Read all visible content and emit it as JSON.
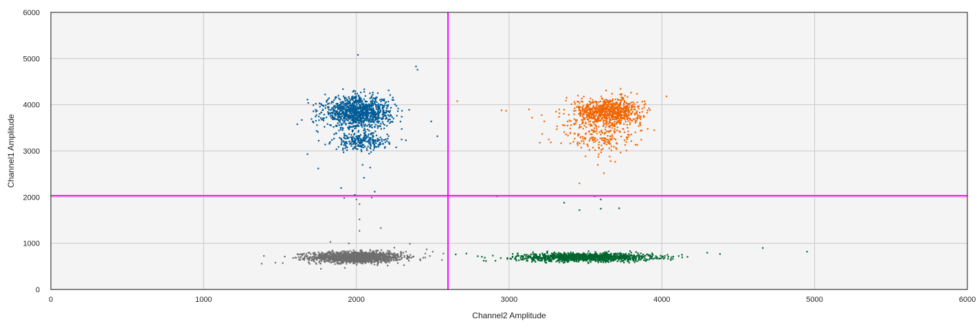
{
  "chart_data": {
    "type": "scatter",
    "xlabel": "Channel2 Amplitude",
    "ylabel": "Channel1 Amplitude",
    "xlim": [
      0,
      6000
    ],
    "ylim": [
      0,
      6000
    ],
    "x_ticks": [
      "0",
      "1000",
      "2000",
      "3000",
      "4000",
      "5000",
      "6000"
    ],
    "y_ticks": [
      "0",
      "1000",
      "2000",
      "3000",
      "4000",
      "5000",
      "6000"
    ],
    "grid": true,
    "background_color": "#f4f4f4",
    "threshold_color": "#ff00ff",
    "thresholds": {
      "x": 2600,
      "y": 2030
    },
    "clusters": [
      {
        "quadrant": "lower-left",
        "color": "#6e6e6e",
        "center": [
          2000,
          700
        ],
        "spread": [
          150,
          60
        ],
        "count": 1500
      },
      {
        "quadrant": "lower-right",
        "color": "#00652e",
        "center": [
          3500,
          700
        ],
        "spread": [
          220,
          45
        ],
        "count": 1200
      },
      {
        "quadrant": "upper-left",
        "color": "#005b96",
        "center": [
          2010,
          3830
        ],
        "spread": [
          110,
          170
        ],
        "count": 1100
      },
      {
        "quadrant": "upper-left",
        "color": "#005b96",
        "center": [
          2030,
          3200
        ],
        "spread": [
          90,
          90
        ],
        "count": 250
      },
      {
        "quadrant": "upper-right",
        "color": "#f26500",
        "center": [
          3650,
          3850
        ],
        "spread": [
          110,
          150
        ],
        "count": 800
      },
      {
        "quadrant": "upper-right",
        "color": "#f26500",
        "center": [
          3600,
          3300
        ],
        "spread": [
          120,
          220
        ],
        "count": 200
      }
    ],
    "outliers": [
      {
        "color": "#005b96",
        "points": [
          [
            2010,
            5080
          ],
          [
            2390,
            4830
          ],
          [
            2400,
            4760
          ],
          [
            2530,
            3320
          ],
          [
            2490,
            3640
          ],
          [
            1680,
            2930
          ],
          [
            1750,
            2620
          ],
          [
            2090,
            2640
          ],
          [
            2120,
            2120
          ],
          [
            1990,
            2050
          ],
          [
            2050,
            2420
          ],
          [
            2040,
            2700
          ],
          [
            1900,
            2200
          ]
        ]
      },
      {
        "color": "#f26500",
        "points": [
          [
            2660,
            4080
          ],
          [
            2950,
            3880
          ],
          [
            2980,
            3870
          ],
          [
            3150,
            3720
          ],
          [
            3230,
            3640
          ],
          [
            3200,
            3180
          ],
          [
            3460,
            2300
          ],
          [
            3580,
            2700
          ],
          [
            3620,
            2520
          ],
          [
            4030,
            4180
          ],
          [
            3950,
            3450
          ],
          [
            3130,
            3900
          ]
        ]
      },
      {
        "color": "#00652e",
        "points": [
          [
            3360,
            1880
          ],
          [
            3460,
            1720
          ],
          [
            3600,
            1750
          ],
          [
            3720,
            1760
          ],
          [
            4380,
            770
          ],
          [
            4660,
            900
          ],
          [
            4950,
            820
          ],
          [
            3560,
            2020
          ],
          [
            3600,
            1950
          ],
          [
            2650,
            760
          ],
          [
            2720,
            780
          ]
        ]
      },
      {
        "color": "#6e6e6e",
        "points": [
          [
            2020,
            1520
          ],
          [
            2020,
            1270
          ],
          [
            2020,
            1850
          ],
          [
            2000,
            1950
          ],
          [
            1920,
            1980
          ],
          [
            2100,
            1990
          ],
          [
            2160,
            1330
          ],
          [
            1830,
            1030
          ],
          [
            1950,
            1000
          ],
          [
            2350,
            990
          ],
          [
            2500,
            820
          ],
          [
            2560,
            640
          ],
          [
            1380,
            560
          ],
          [
            1470,
            580
          ],
          [
            2920,
            2020
          ],
          [
            2570,
            780
          ],
          [
            2460,
            870
          ]
        ]
      }
    ]
  }
}
